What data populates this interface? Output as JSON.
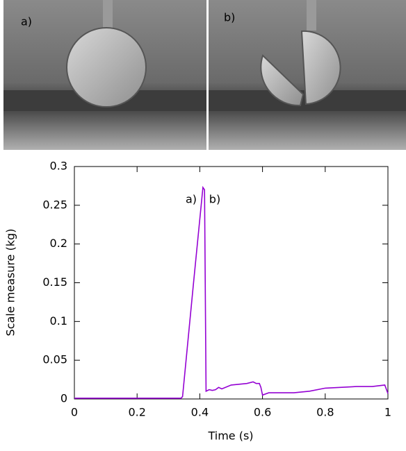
{
  "photos": [
    {
      "label": "a)"
    },
    {
      "label": "b)"
    }
  ],
  "chart_data": {
    "type": "line",
    "xlabel": "Time (s)",
    "ylabel": "Scale measure (kg)",
    "annotations": [
      "a)",
      "b)"
    ],
    "x": [
      0,
      0.1,
      0.2,
      0.3,
      0.34,
      0.345,
      0.38,
      0.41,
      0.415,
      0.42,
      0.43,
      0.44,
      0.45,
      0.46,
      0.47,
      0.5,
      0.55,
      0.57,
      0.58,
      0.59,
      0.595,
      0.6,
      0.62,
      0.7,
      0.75,
      0.8,
      0.9,
      0.95,
      0.99,
      1.0
    ],
    "series": [
      {
        "color": "#9400d3",
        "values": [
          0.001,
          0.001,
          0.001,
          0.001,
          0.001,
          0.003,
          0.15,
          0.273,
          0.27,
          0.01,
          0.012,
          0.011,
          0.012,
          0.015,
          0.013,
          0.018,
          0.02,
          0.022,
          0.02,
          0.02,
          0.015,
          0.005,
          0.008,
          0.008,
          0.01,
          0.014,
          0.016,
          0.016,
          0.018,
          0.007
        ]
      }
    ],
    "xlim": [
      0,
      1
    ],
    "ylim": [
      0,
      0.3
    ],
    "xticks": [
      0,
      0.2,
      0.4,
      0.6,
      0.8,
      1
    ],
    "yticks": [
      0,
      0.05,
      0.1,
      0.15,
      0.2,
      0.25,
      0.3
    ]
  }
}
